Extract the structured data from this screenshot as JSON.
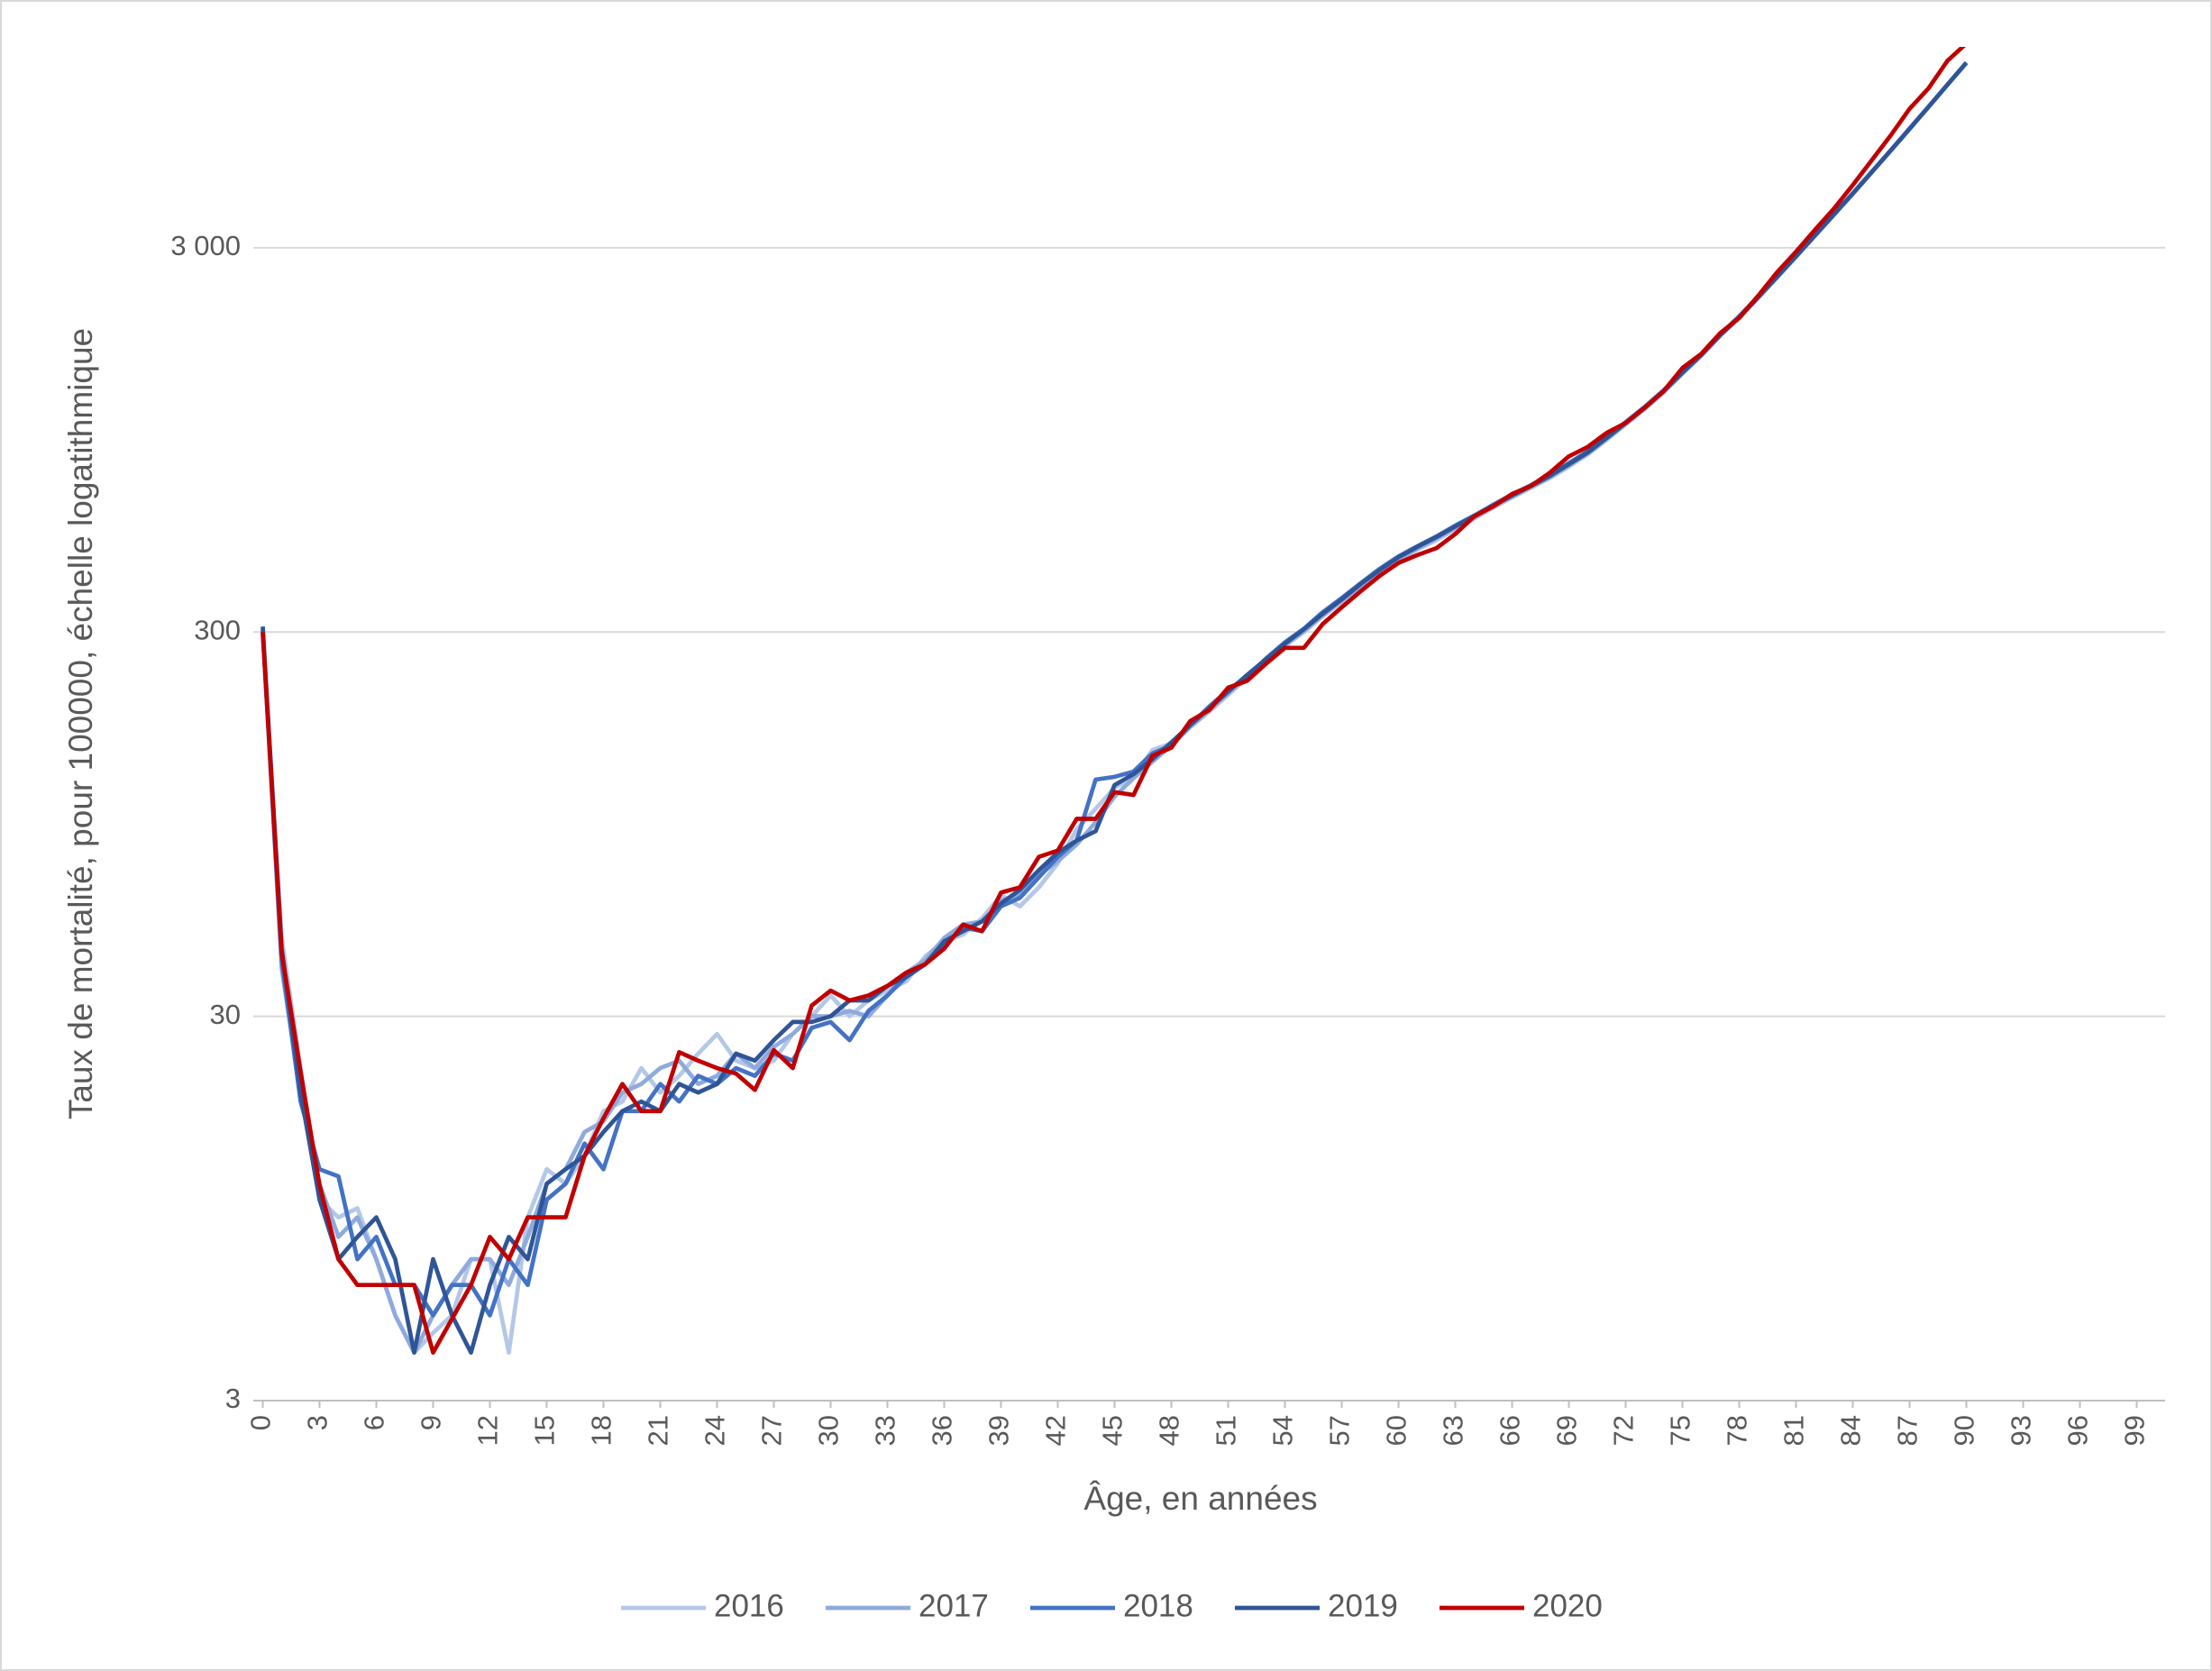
{
  "chart_data": {
    "type": "line",
    "y_label": "Taux de mortalité, pour 100000, échelle logatithmique",
    "x_label": "Âge, en années",
    "log_y": true,
    "grid": true,
    "legend": "bottom",
    "x": [
      0,
      1,
      2,
      3,
      4,
      5,
      6,
      7,
      8,
      9,
      10,
      11,
      12,
      13,
      14,
      15,
      16,
      17,
      18,
      19,
      20,
      21,
      22,
      23,
      24,
      25,
      26,
      27,
      28,
      29,
      30,
      31,
      32,
      33,
      34,
      35,
      36,
      37,
      38,
      39,
      40,
      41,
      42,
      43,
      44,
      45,
      46,
      47,
      48,
      49,
      50,
      51,
      52,
      53,
      54,
      55,
      56,
      57,
      58,
      59,
      60,
      61,
      62,
      63,
      64,
      65,
      66,
      67,
      68,
      69,
      70,
      71,
      72,
      73,
      74,
      75,
      76,
      77,
      78,
      79,
      80,
      81,
      82,
      83,
      84,
      85,
      86,
      87,
      88,
      89,
      90
    ],
    "xlim": [
      -0.5,
      100.5
    ],
    "xticks": [
      0,
      3,
      6,
      9,
      12,
      15,
      18,
      21,
      24,
      27,
      30,
      33,
      36,
      39,
      42,
      45,
      48,
      51,
      54,
      57,
      60,
      63,
      66,
      69,
      72,
      75,
      78,
      81,
      84,
      87,
      90,
      93,
      96,
      99
    ],
    "ylim": [
      3,
      10000
    ],
    "yticks": [
      3,
      30,
      300,
      {
        "value": 3000,
        "label": "3 000"
      }
    ],
    "series": [
      {
        "name": "2016",
        "color": "#b4c7e7",
        "values": [
          295,
          48,
          22,
          10,
          9,
          9.5,
          7,
          5,
          4,
          4.5,
          5,
          7,
          7,
          4,
          9,
          12,
          11,
          13,
          17,
          18,
          22,
          19,
          21,
          24,
          27,
          23,
          22,
          23,
          27,
          30,
          34,
          30,
          33,
          35,
          37,
          43,
          47,
          49,
          54,
          62,
          58,
          65,
          75,
          92,
          104,
          118,
          126,
          148,
          154,
          170,
          186,
          206,
          228,
          250,
          276,
          300,
          330,
          360,
          394,
          428,
          462,
          492,
          520,
          556,
          592,
          632,
          672,
          712,
          755,
          808,
          870,
          950,
          1040,
          1140,
          1260,
          1410,
          1570,
          1770,
          1970,
          2220,
          2510,
          2840,
          3220,
          3650,
          4140,
          4710,
          5360,
          6110,
          6970,
          7960,
          9070
        ]
      },
      {
        "name": "2017",
        "color": "#8faadc",
        "values": [
          305,
          40,
          19,
          11,
          8,
          9,
          7,
          5,
          4,
          5,
          6,
          7,
          7,
          6,
          8,
          11,
          12,
          15,
          16,
          19,
          20,
          22,
          23,
          20,
          21,
          24,
          22,
          25,
          27,
          30,
          30,
          31,
          30,
          34,
          39,
          42,
          48,
          52,
          53,
          60,
          62,
          70,
          76,
          84,
          96,
          112,
          125,
          138,
          152,
          170,
          188,
          208,
          230,
          252,
          278,
          302,
          332,
          362,
          396,
          430,
          465,
          495,
          526,
          560,
          596,
          636,
          676,
          716,
          760,
          815,
          875,
          955,
          1045,
          1145,
          1265,
          1415,
          1575,
          1775,
          1975,
          2225,
          2515,
          2845,
          3225,
          3655,
          4145,
          4715,
          5365,
          6115,
          6975,
          7965,
          9080
        ]
      },
      {
        "name": "2018",
        "color": "#4472c4",
        "values": [
          300,
          42,
          18,
          12,
          11.5,
          7,
          8,
          6,
          6,
          5,
          6,
          6,
          5,
          7,
          6,
          10,
          11,
          14,
          12,
          17,
          17,
          20,
          18,
          21,
          20,
          22,
          21,
          24,
          23,
          28,
          29,
          26,
          31,
          34,
          38,
          41,
          46,
          51,
          50,
          58,
          61,
          69,
          78,
          86,
          124,
          126,
          130,
          145,
          152,
          172,
          192,
          212,
          230,
          256,
          282,
          306,
          338,
          368,
          402,
          438,
          472,
          502,
          532,
          568,
          603,
          643,
          684,
          724,
          770,
          826,
          886,
          966,
          1056,
          1156,
          1276,
          1426,
          1588,
          1788,
          1990,
          2240,
          2530,
          2860,
          3240,
          3670,
          4160,
          4730,
          5380,
          6130,
          6990,
          7980,
          9100
        ]
      },
      {
        "name": "2019",
        "color": "#2f5597",
        "values": [
          310,
          45,
          19,
          10,
          7,
          8,
          9,
          7,
          4,
          7,
          5,
          4,
          6,
          8,
          7,
          11,
          12,
          13,
          15,
          17,
          18,
          17,
          20,
          19,
          20,
          24,
          23,
          26,
          29,
          29,
          30,
          33,
          33,
          36,
          38,
          41,
          47,
          50,
          53,
          59,
          64,
          72,
          80,
          86,
          91,
          120,
          128,
          140,
          155,
          172,
          190,
          210,
          232,
          255,
          280,
          305,
          335,
          365,
          400,
          435,
          470,
          500,
          530,
          565,
          600,
          640,
          680,
          720,
          765,
          820,
          880,
          960,
          1050,
          1150,
          1270,
          1420,
          1580,
          1780,
          1980,
          2230,
          2520,
          2850,
          3230,
          3660,
          4150,
          4720,
          5370,
          6120,
          6980,
          7970,
          9100
        ]
      },
      {
        "name": "2020",
        "color": "#c00000",
        "values": [
          300,
          44,
          21.5,
          10.9,
          7,
          6,
          6,
          6,
          6,
          4,
          4.9,
          6,
          8,
          7,
          9,
          9,
          9,
          13,
          16.3,
          20,
          17,
          17,
          24.2,
          23,
          22,
          21.3,
          19.3,
          24.5,
          22,
          32,
          35,
          33,
          34,
          36,
          39,
          41,
          45,
          52,
          50,
          63,
          65,
          78,
          81,
          98,
          98,
          115,
          113,
          143,
          150,
          176,
          188,
          215,
          224,
          248,
          273,
          273,
          315,
          348,
          383,
          420,
          454,
          476,
          496,
          540,
          600,
          637,
          686,
          720,
          780,
          860,
          910,
          990,
          1050,
          1150,
          1270,
          1460,
          1590,
          1800,
          1970,
          2250,
          2590,
          2930,
          3340,
          3790,
          4370,
          5070,
          5880,
          6900,
          7800,
          9200,
          10200
        ]
      }
    ]
  }
}
